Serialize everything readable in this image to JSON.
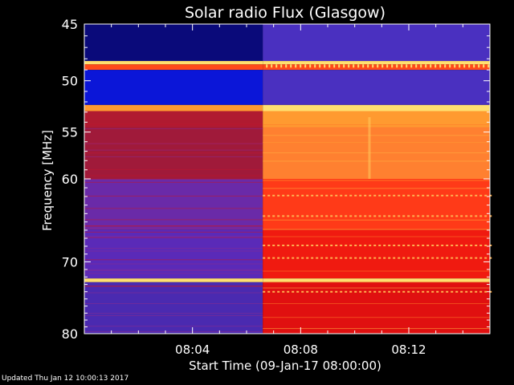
{
  "chart_data": {
    "type": "heatmap",
    "title": "Solar radio Flux (Glasgow)",
    "ylabel": "Frequency [MHz]",
    "xlabel": "Start Time (09-Jan-17 08:00:00)",
    "y_ticks": [
      45,
      50,
      55,
      60,
      70,
      80
    ],
    "y_tick_labels": [
      "45",
      "50",
      "55",
      "60",
      "70",
      "80"
    ],
    "x_ticks": [
      "08:04",
      "08:08",
      "08:12"
    ],
    "x_tick_minutes": [
      4,
      8,
      12
    ],
    "xlim_minutes": [
      0,
      15
    ],
    "ylim_mhz": [
      45,
      80
    ],
    "y_scale": "log",
    "burst_onset_minute": 6.6,
    "colormap": [
      "#3a1aa0",
      "#5a2ab8",
      "#7a2a9a",
      "#b01a30",
      "#e01010",
      "#ff4a1a",
      "#ff9a30",
      "#ffe070"
    ],
    "bands_mhz": [
      {
        "low": 45,
        "high": 48.2,
        "before": "#0a0a7a",
        "after": "#4a30c0"
      },
      {
        "low": 48.2,
        "high": 48.5,
        "before": "#ffe070",
        "after": "#ffe070"
      },
      {
        "low": 48.5,
        "high": 49.0,
        "before": "#ff4a1a",
        "after": "#ff4a1a"
      },
      {
        "low": 49.0,
        "high": 52.3,
        "before": "#0b16d8",
        "after": "#4a30c0"
      },
      {
        "low": 52.3,
        "high": 52.9,
        "before": "#ff9a30",
        "after": "#ffe070"
      },
      {
        "low": 52.9,
        "high": 54.5,
        "before": "#b01a30",
        "after": "#ff9a30"
      },
      {
        "low": 54.5,
        "high": 60,
        "before": "#a01a3a",
        "after": "#ff8030"
      },
      {
        "low": 60,
        "high": 66,
        "before": "#6a2aa8",
        "after": "#ff3a18"
      },
      {
        "low": 66,
        "high": 72.2,
        "before": "#5a2ab8",
        "after": "#f01a10"
      },
      {
        "low": 72.2,
        "high": 72.7,
        "before": "#ffe070",
        "after": "#ffe070"
      },
      {
        "low": 72.7,
        "high": 80,
        "before": "#4a2ab0",
        "after": "#e01010"
      }
    ]
  },
  "footer": {
    "updated": "Updated Thu Jan 12 10:00:13 2017"
  }
}
